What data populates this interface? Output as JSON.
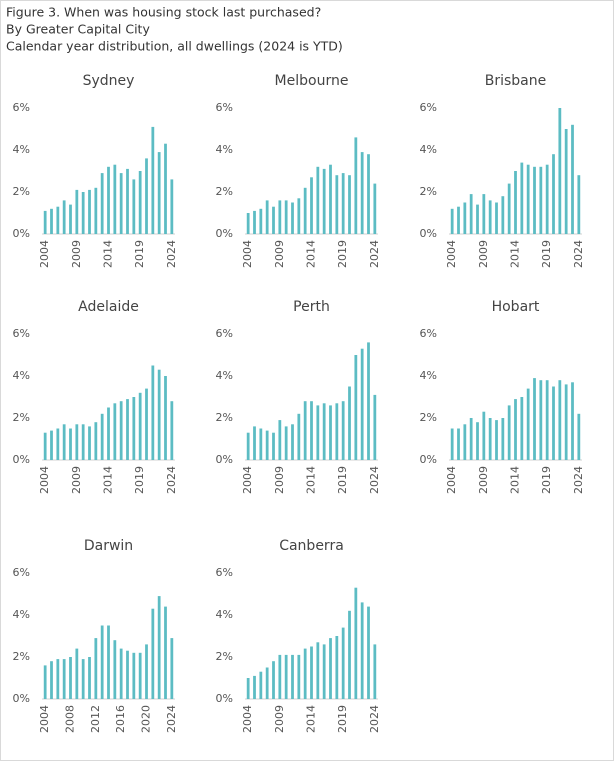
{
  "header": {
    "title": "Figure 3. When was housing stock last purchased?",
    "subtitle": "By Greater Capital City",
    "note": "Calendar year distribution, all dwellings (2024 is YTD)"
  },
  "chart_data": [
    {
      "type": "bar",
      "title": "Sydney",
      "color": "#5cbcc3",
      "categories": [
        "2004",
        null,
        null,
        null,
        null,
        "2009",
        null,
        null,
        null,
        null,
        "2014",
        null,
        null,
        null,
        null,
        "2019",
        null,
        null,
        null,
        null,
        "2024"
      ],
      "values": [
        1.1,
        1.2,
        1.3,
        1.6,
        1.4,
        2.1,
        2.0,
        2.1,
        2.2,
        2.9,
        3.2,
        3.3,
        2.9,
        3.1,
        2.6,
        3.0,
        3.6,
        5.1,
        3.9,
        4.3,
        2.6
      ],
      "ylim": [
        0,
        6
      ],
      "yticks": [
        {
          "value": 0,
          "label": "0%"
        },
        {
          "value": 2,
          "label": "2%"
        },
        {
          "value": 4,
          "label": "4%"
        },
        {
          "value": 6,
          "label": "6%"
        }
      ],
      "grid": false
    },
    {
      "type": "bar",
      "title": "Melbourne",
      "color": "#5cbcc3",
      "categories": [
        "2004",
        null,
        null,
        null,
        null,
        "2009",
        null,
        null,
        null,
        null,
        "2014",
        null,
        null,
        null,
        null,
        "2019",
        null,
        null,
        null,
        null,
        "2024"
      ],
      "values": [
        1.0,
        1.1,
        1.2,
        1.6,
        1.3,
        1.6,
        1.6,
        1.5,
        1.7,
        2.2,
        2.7,
        3.2,
        3.1,
        3.3,
        2.8,
        2.9,
        2.8,
        4.6,
        3.9,
        3.8,
        2.4
      ],
      "ylim": [
        0,
        6
      ],
      "yticks": [
        {
          "value": 0,
          "label": "0%"
        },
        {
          "value": 2,
          "label": "2%"
        },
        {
          "value": 4,
          "label": "4%"
        },
        {
          "value": 6,
          "label": "6%"
        }
      ],
      "grid": false
    },
    {
      "type": "bar",
      "title": "Brisbane",
      "color": "#5cbcc3",
      "categories": [
        "2004",
        null,
        null,
        null,
        null,
        "2009",
        null,
        null,
        null,
        null,
        "2014",
        null,
        null,
        null,
        null,
        "2019",
        null,
        null,
        null,
        null,
        "2024"
      ],
      "values": [
        1.2,
        1.3,
        1.5,
        1.9,
        1.4,
        1.9,
        1.6,
        1.5,
        1.8,
        2.4,
        3.0,
        3.4,
        3.3,
        3.2,
        3.2,
        3.3,
        3.8,
        6.0,
        5.0,
        5.2,
        2.8
      ],
      "ylim": [
        0,
        6
      ],
      "yticks": [
        {
          "value": 0,
          "label": "0%"
        },
        {
          "value": 2,
          "label": "2%"
        },
        {
          "value": 4,
          "label": "4%"
        },
        {
          "value": 6,
          "label": "6%"
        }
      ],
      "grid": false
    },
    {
      "type": "bar",
      "title": "Adelaide",
      "color": "#5cbcc3",
      "categories": [
        "2004",
        null,
        null,
        null,
        null,
        "2009",
        null,
        null,
        null,
        null,
        "2014",
        null,
        null,
        null,
        null,
        "2019",
        null,
        null,
        null,
        null,
        "2024"
      ],
      "values": [
        1.3,
        1.4,
        1.5,
        1.7,
        1.5,
        1.7,
        1.7,
        1.6,
        1.8,
        2.2,
        2.5,
        2.7,
        2.8,
        2.9,
        3.0,
        3.2,
        3.4,
        4.5,
        4.3,
        4.0,
        2.8
      ],
      "ylim": [
        0,
        6
      ],
      "yticks": [
        {
          "value": 0,
          "label": "0%"
        },
        {
          "value": 2,
          "label": "2%"
        },
        {
          "value": 4,
          "label": "4%"
        },
        {
          "value": 6,
          "label": "6%"
        }
      ],
      "grid": false
    },
    {
      "type": "bar",
      "title": "Perth",
      "color": "#5cbcc3",
      "categories": [
        "2004",
        null,
        null,
        null,
        null,
        "2009",
        null,
        null,
        null,
        null,
        "2014",
        null,
        null,
        null,
        null,
        "2019",
        null,
        null,
        null,
        null,
        "2024"
      ],
      "values": [
        1.3,
        1.6,
        1.5,
        1.4,
        1.3,
        1.9,
        1.6,
        1.7,
        2.2,
        2.8,
        2.8,
        2.6,
        2.7,
        2.6,
        2.7,
        2.8,
        3.5,
        5.0,
        5.3,
        5.6,
        3.1
      ],
      "ylim": [
        0,
        6
      ],
      "yticks": [
        {
          "value": 0,
          "label": "0%"
        },
        {
          "value": 2,
          "label": "2%"
        },
        {
          "value": 4,
          "label": "4%"
        },
        {
          "value": 6,
          "label": "6%"
        }
      ],
      "grid": false
    },
    {
      "type": "bar",
      "title": "Hobart",
      "color": "#5cbcc3",
      "categories": [
        "2004",
        null,
        null,
        null,
        null,
        "2009",
        null,
        null,
        null,
        null,
        "2014",
        null,
        null,
        null,
        null,
        "2019",
        null,
        null,
        null,
        null,
        "2024"
      ],
      "values": [
        1.5,
        1.5,
        1.7,
        2.0,
        1.8,
        2.3,
        2.0,
        1.9,
        2.0,
        2.6,
        2.9,
        3.0,
        3.4,
        3.9,
        3.8,
        3.8,
        3.5,
        3.8,
        3.6,
        3.7,
        2.2
      ],
      "ylim": [
        0,
        6
      ],
      "yticks": [
        {
          "value": 0,
          "label": "0%"
        },
        {
          "value": 2,
          "label": "2%"
        },
        {
          "value": 4,
          "label": "4%"
        },
        {
          "value": 6,
          "label": "6%"
        }
      ],
      "grid": false
    },
    {
      "type": "bar",
      "title": "Darwin",
      "color": "#5cbcc3",
      "categories": [
        "2004",
        null,
        null,
        null,
        "2008",
        null,
        null,
        null,
        "2012",
        null,
        null,
        null,
        "2016",
        null,
        null,
        null,
        "2020",
        null,
        null,
        null,
        "2024"
      ],
      "values": [
        1.6,
        1.8,
        1.9,
        1.9,
        2.0,
        2.4,
        1.9,
        2.0,
        2.9,
        3.5,
        3.5,
        2.8,
        2.4,
        2.3,
        2.2,
        2.2,
        2.6,
        4.3,
        4.9,
        4.4,
        2.9
      ],
      "ylim": [
        0,
        6
      ],
      "yticks": [
        {
          "value": 0,
          "label": "0%"
        },
        {
          "value": 2,
          "label": "2%"
        },
        {
          "value": 4,
          "label": "4%"
        },
        {
          "value": 6,
          "label": "6%"
        }
      ],
      "grid": false
    },
    {
      "type": "bar",
      "title": "Canberra",
      "color": "#5cbcc3",
      "categories": [
        "2004",
        null,
        null,
        null,
        null,
        "2009",
        null,
        null,
        null,
        null,
        "2014",
        null,
        null,
        null,
        null,
        "2019",
        null,
        null,
        null,
        null,
        "2024"
      ],
      "values": [
        1.0,
        1.1,
        1.3,
        1.5,
        1.8,
        2.1,
        2.1,
        2.1,
        2.1,
        2.4,
        2.5,
        2.7,
        2.6,
        2.9,
        3.0,
        3.4,
        4.2,
        5.3,
        4.6,
        4.4,
        2.6
      ],
      "ylim": [
        0,
        6
      ],
      "yticks": [
        {
          "value": 0,
          "label": "0%"
        },
        {
          "value": 2,
          "label": "2%"
        },
        {
          "value": 4,
          "label": "4%"
        },
        {
          "value": 6,
          "label": "6%"
        }
      ],
      "grid": false
    }
  ]
}
